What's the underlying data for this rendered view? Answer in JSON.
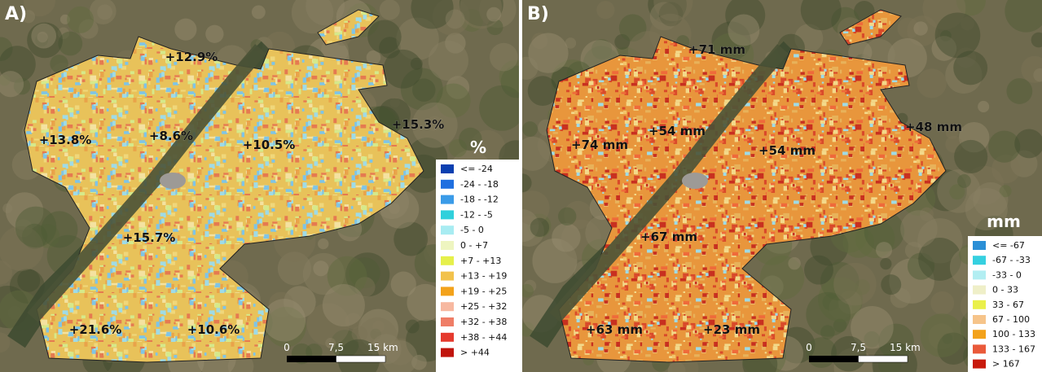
{
  "panels": [
    {
      "label": "A)",
      "regions": [
        "+12.9%",
        "+13.8%",
        "+8.6%",
        "+10.5%",
        "+15.3%",
        "+15.7%",
        "+21.6%",
        "+10.6%"
      ],
      "legend": {
        "title": "%",
        "items": [
          {
            "label": "<= -24",
            "color": "#0a3fb0"
          },
          {
            "label": "-24 - -18",
            "color": "#1f6fe0"
          },
          {
            "label": "-18 - -12",
            "color": "#3a9be8"
          },
          {
            "label": "-12 - -5",
            "color": "#2fd0dc"
          },
          {
            "label": "-5 - 0",
            "color": "#a8ecf2"
          },
          {
            "label": "0 - +7",
            "color": "#eef5c0"
          },
          {
            "label": "+7 - +13",
            "color": "#e6f04a"
          },
          {
            "label": "+13 - +19",
            "color": "#f2c24c"
          },
          {
            "label": "+19 - +25",
            "color": "#f3a21a"
          },
          {
            "label": "+25 - +32",
            "color": "#f7b8a0"
          },
          {
            "label": "+32 - +38",
            "color": "#ef7d66"
          },
          {
            "label": "+38 - +44",
            "color": "#e53a2e"
          },
          {
            "label": "> +44",
            "color": "#c0140c"
          }
        ]
      },
      "scale": [
        "0",
        "7,5",
        "15 km"
      ]
    },
    {
      "label": "B)",
      "regions": [
        "+71 mm",
        "+74 mm",
        "+54 mm",
        "+54 mm",
        "+48 mm",
        "+67 mm",
        "+63 mm",
        "+23 mm"
      ],
      "legend": {
        "title": "mm",
        "items": [
          {
            "label": "<= -67",
            "color": "#2a8fd6"
          },
          {
            "label": "-67 - -33",
            "color": "#35d0e0"
          },
          {
            "label": "-33 - 0",
            "color": "#b2eef2"
          },
          {
            "label": "0 - 33",
            "color": "#efefc8"
          },
          {
            "label": "33 - 67",
            "color": "#eaf04a"
          },
          {
            "label": "67 - 100",
            "color": "#f6c48a"
          },
          {
            "label": "100 - 133",
            "color": "#f3a21a"
          },
          {
            "label": "133 - 167",
            "color": "#ea5a3a"
          },
          {
            "label": "> 167",
            "color": "#c81a0c"
          }
        ]
      },
      "scale": [
        "0",
        "7,5",
        "15 km"
      ]
    }
  ]
}
